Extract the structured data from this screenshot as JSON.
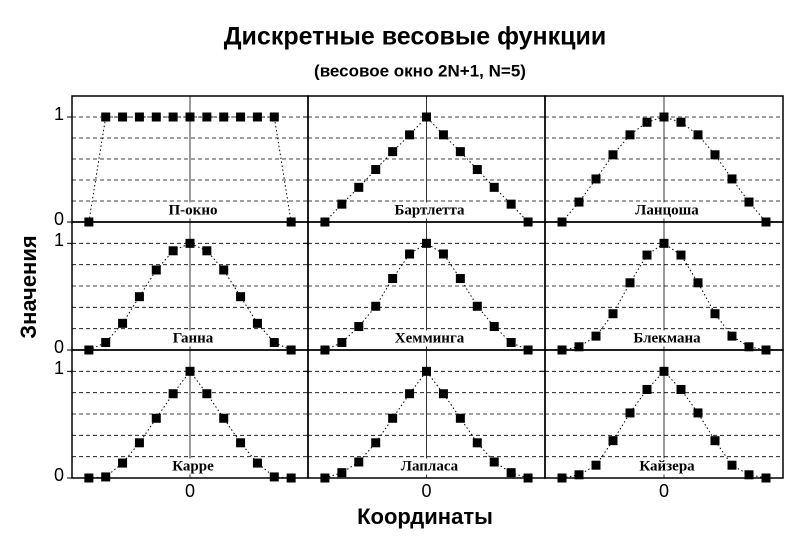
{
  "figure": {
    "title": "Дискретные весовые функции",
    "subtitle": "(весовое окно 2N+1, N=5)",
    "x_label": "Координаты",
    "y_label": "Значения"
  },
  "chart_data": [
    {
      "type": "line",
      "title": "П-окно",
      "x": [
        -6,
        -5,
        -4,
        -3,
        -2,
        -1,
        0,
        1,
        2,
        3,
        4,
        5,
        6
      ],
      "values": [
        0,
        1,
        1,
        1,
        1,
        1,
        1,
        1,
        1,
        1,
        1,
        1,
        0
      ],
      "color": "#000000",
      "xlim": [
        -7,
        7
      ],
      "ylim": [
        0,
        1.2
      ],
      "xticks": [
        0
      ],
      "yticks": [
        0,
        1
      ],
      "grid_yticks": [
        0.2,
        0.4,
        0.6,
        0.8
      ],
      "show_xticklabels": false,
      "show_yticklabels": true
    },
    {
      "type": "line",
      "title": "Бартлетта",
      "x": [
        -6,
        -5,
        -4,
        -3,
        -2,
        -1,
        0,
        1,
        2,
        3,
        4,
        5,
        6
      ],
      "values": [
        0,
        0.17,
        0.33,
        0.5,
        0.67,
        0.83,
        1,
        0.83,
        0.67,
        0.5,
        0.33,
        0.17,
        0
      ],
      "color": "#000000",
      "xlim": [
        -7,
        7
      ],
      "ylim": [
        0,
        1.2
      ],
      "xticks": [
        0
      ],
      "yticks": [
        0,
        1
      ],
      "grid_yticks": [
        0.2,
        0.4,
        0.6,
        0.8
      ],
      "show_xticklabels": false,
      "show_yticklabels": false
    },
    {
      "type": "line",
      "title": "Ланцоша",
      "x": [
        -6,
        -5,
        -4,
        -3,
        -2,
        -1,
        0,
        1,
        2,
        3,
        4,
        5,
        6
      ],
      "values": [
        0,
        0.19,
        0.41,
        0.64,
        0.83,
        0.95,
        1,
        0.95,
        0.83,
        0.64,
        0.41,
        0.19,
        0
      ],
      "color": "#000000",
      "xlim": [
        -7,
        7
      ],
      "ylim": [
        0,
        1.2
      ],
      "xticks": [
        0
      ],
      "yticks": [
        0,
        1
      ],
      "grid_yticks": [
        0.2,
        0.4,
        0.6,
        0.8
      ],
      "show_xticklabels": false,
      "show_yticklabels": false
    },
    {
      "type": "line",
      "title": "Ганна",
      "x": [
        -6,
        -5,
        -4,
        -3,
        -2,
        -1,
        0,
        1,
        2,
        3,
        4,
        5,
        6
      ],
      "values": [
        0,
        0.07,
        0.25,
        0.5,
        0.75,
        0.93,
        1,
        0.93,
        0.75,
        0.5,
        0.25,
        0.07,
        0
      ],
      "color": "#000000",
      "xlim": [
        -7,
        7
      ],
      "ylim": [
        0,
        1.2
      ],
      "xticks": [
        0
      ],
      "yticks": [
        0,
        1
      ],
      "grid_yticks": [
        0.2,
        0.4,
        0.6,
        0.8
      ],
      "show_xticklabels": false,
      "show_yticklabels": true
    },
    {
      "type": "line",
      "title": "Хемминга",
      "x": [
        -6,
        -5,
        -4,
        -3,
        -2,
        -1,
        0,
        1,
        2,
        3,
        4,
        5,
        6
      ],
      "values": [
        0,
        0.07,
        0.22,
        0.41,
        0.67,
        0.9,
        1,
        0.9,
        0.67,
        0.41,
        0.22,
        0.07,
        0
      ],
      "color": "#000000",
      "xlim": [
        -7,
        7
      ],
      "ylim": [
        0,
        1.2
      ],
      "xticks": [
        0
      ],
      "yticks": [
        0,
        1
      ],
      "grid_yticks": [
        0.2,
        0.4,
        0.6,
        0.8
      ],
      "show_xticklabels": false,
      "show_yticklabels": false
    },
    {
      "type": "line",
      "title": "Блекмана",
      "x": [
        -6,
        -5,
        -4,
        -3,
        -2,
        -1,
        0,
        1,
        2,
        3,
        4,
        5,
        6
      ],
      "values": [
        0,
        0.03,
        0.13,
        0.34,
        0.63,
        0.89,
        1,
        0.89,
        0.63,
        0.34,
        0.13,
        0.03,
        0
      ],
      "color": "#000000",
      "xlim": [
        -7,
        7
      ],
      "ylim": [
        0,
        1.2
      ],
      "xticks": [
        0
      ],
      "yticks": [
        0,
        1
      ],
      "grid_yticks": [
        0.2,
        0.4,
        0.6,
        0.8
      ],
      "show_xticklabels": false,
      "show_yticklabels": false
    },
    {
      "type": "line",
      "title": "Карре",
      "x": [
        -6,
        -5,
        -4,
        -3,
        -2,
        -1,
        0,
        1,
        2,
        3,
        4,
        5,
        6
      ],
      "values": [
        0,
        0.01,
        0.14,
        0.33,
        0.56,
        0.79,
        1,
        0.79,
        0.56,
        0.33,
        0.14,
        0.01,
        0
      ],
      "color": "#000000",
      "xlim": [
        -7,
        7
      ],
      "ylim": [
        0,
        1.2
      ],
      "xticks": [
        0
      ],
      "yticks": [
        0,
        1
      ],
      "grid_yticks": [
        0.2,
        0.4,
        0.6,
        0.8
      ],
      "show_xticklabels": true,
      "show_yticklabels": true
    },
    {
      "type": "line",
      "title": "Лапласа",
      "x": [
        -6,
        -5,
        -4,
        -3,
        -2,
        -1,
        0,
        1,
        2,
        3,
        4,
        5,
        6
      ],
      "values": [
        0,
        0.05,
        0.15,
        0.33,
        0.56,
        0.79,
        1,
        0.79,
        0.56,
        0.33,
        0.15,
        0.05,
        0
      ],
      "color": "#000000",
      "xlim": [
        -7,
        7
      ],
      "ylim": [
        0,
        1.2
      ],
      "xticks": [
        0
      ],
      "yticks": [
        0,
        1
      ],
      "grid_yticks": [
        0.2,
        0.4,
        0.6,
        0.8
      ],
      "show_xticklabels": true,
      "show_yticklabels": false
    },
    {
      "type": "line",
      "title": "Кайзера",
      "x": [
        -6,
        -5,
        -4,
        -3,
        -2,
        -1,
        0,
        1,
        2,
        3,
        4,
        5,
        6
      ],
      "values": [
        0,
        0.03,
        0.12,
        0.35,
        0.61,
        0.83,
        1,
        0.83,
        0.61,
        0.35,
        0.12,
        0.03,
        0
      ],
      "color": "#000000",
      "xlim": [
        -7,
        7
      ],
      "ylim": [
        0,
        1.2
      ],
      "xticks": [
        0
      ],
      "yticks": [
        0,
        1
      ],
      "grid_yticks": [
        0.2,
        0.4,
        0.6,
        0.8
      ],
      "show_xticklabels": true,
      "show_yticklabels": false
    }
  ]
}
